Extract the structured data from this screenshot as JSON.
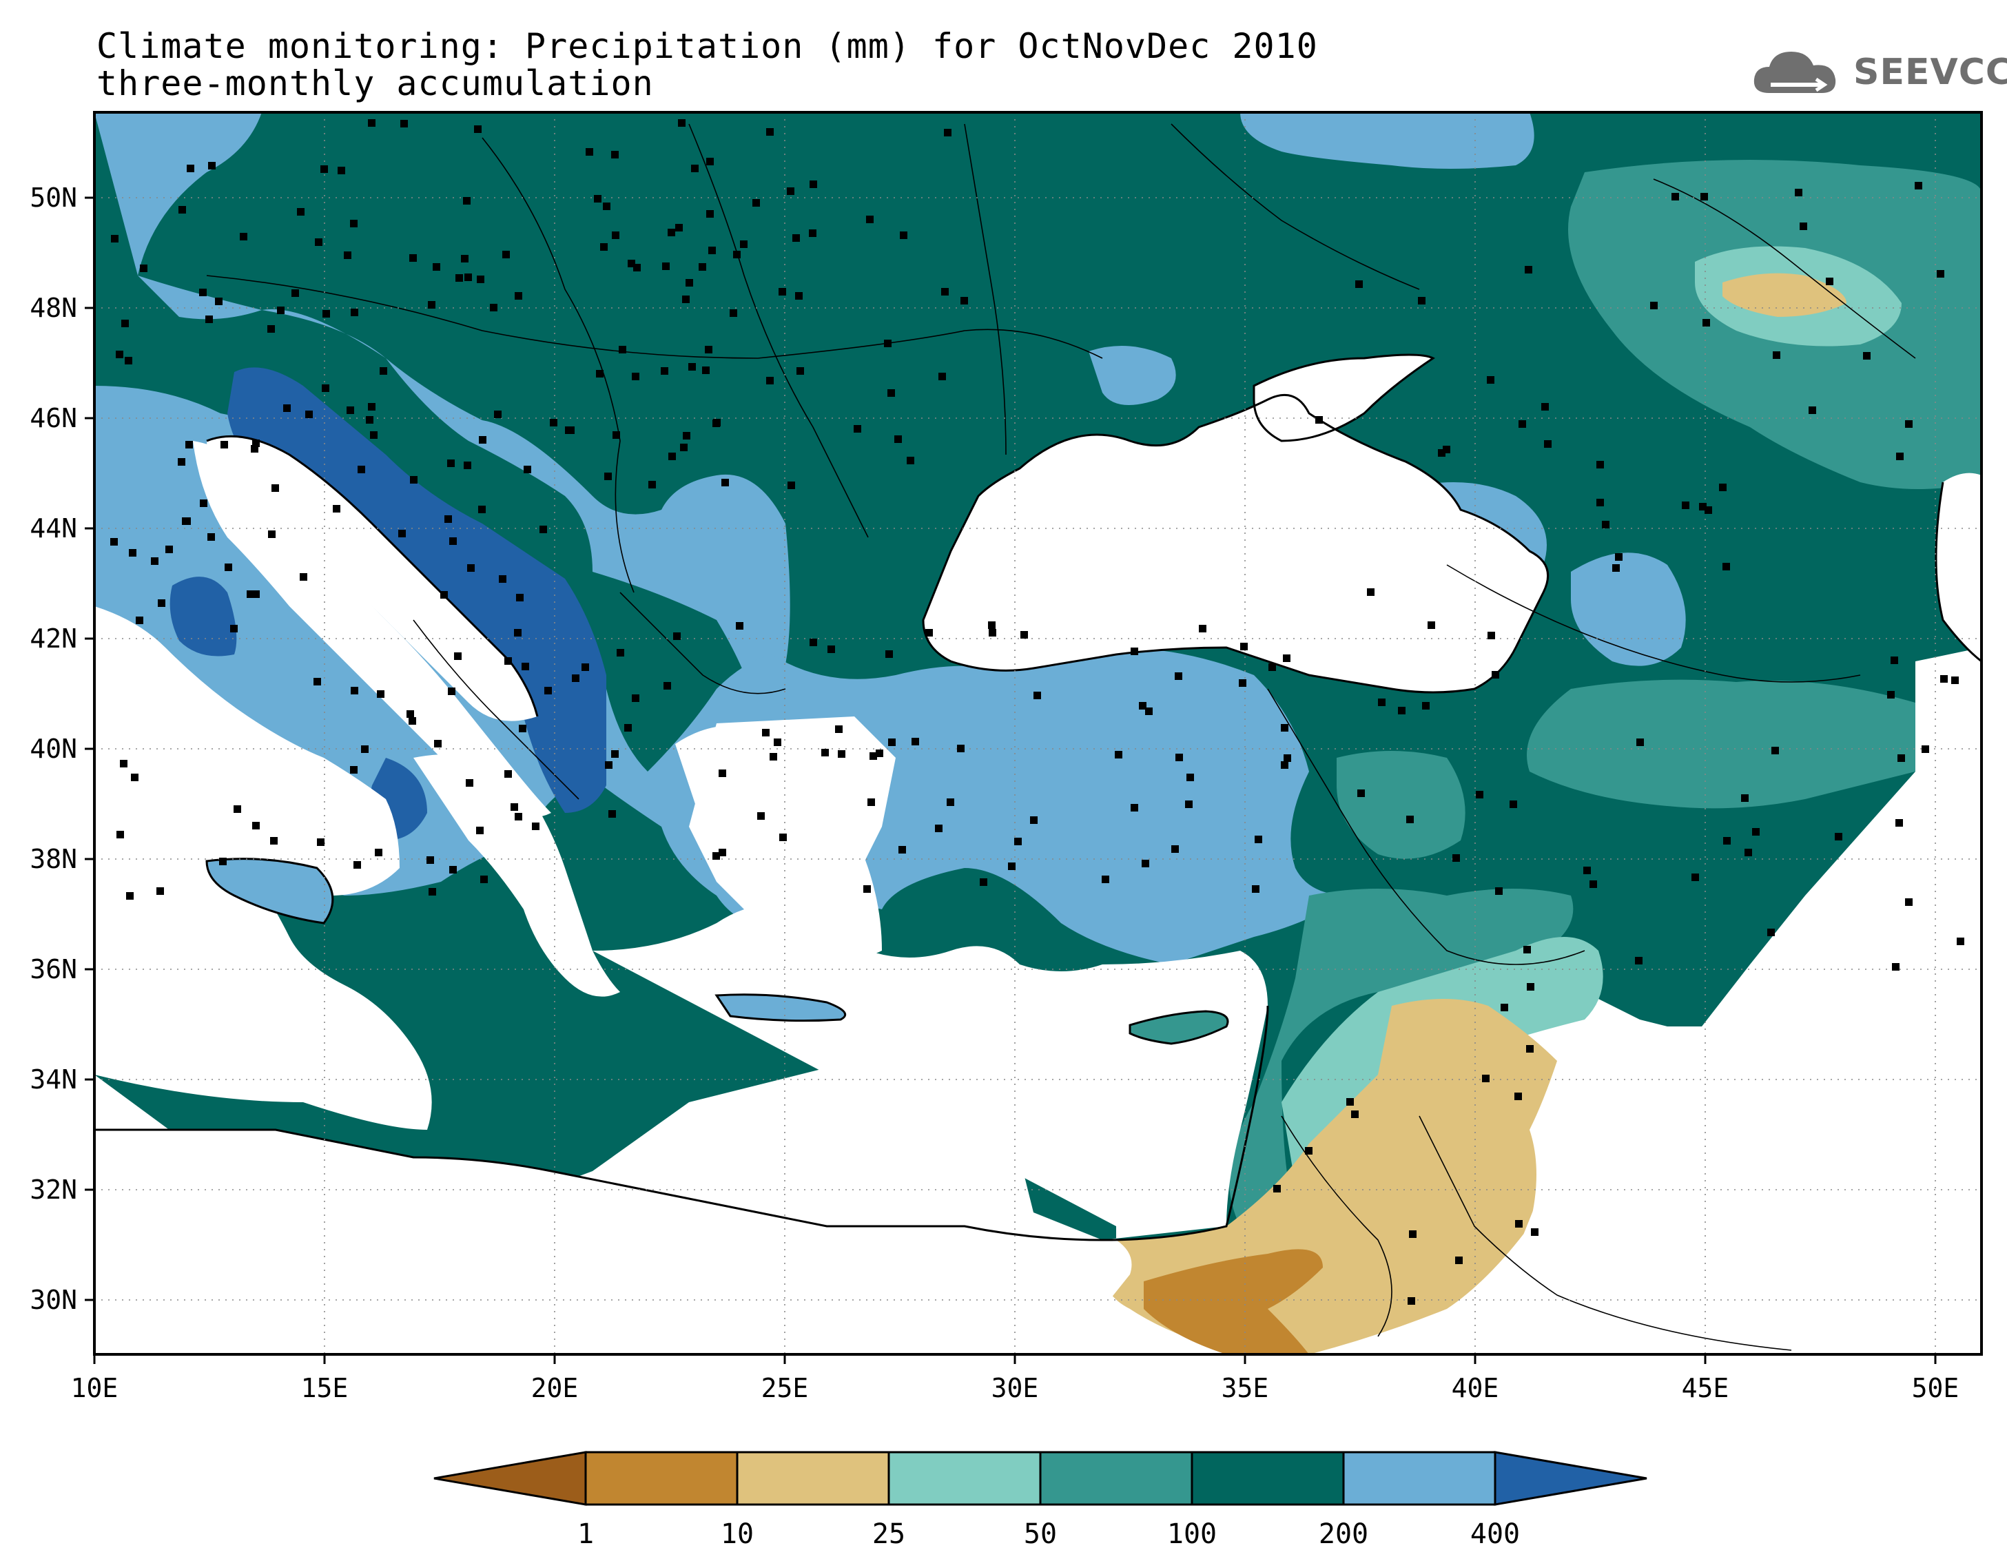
{
  "title": {
    "line1": "Climate monitoring: Precipitation (mm) for OctNovDec 2010",
    "line2": "three-monthly accumulation"
  },
  "logo": {
    "text": "SEEVCCC",
    "icon": "cloud-icon"
  },
  "map": {
    "lon_labels": [
      "10E",
      "15E",
      "20E",
      "25E",
      "30E",
      "35E",
      "40E",
      "45E",
      "50E"
    ],
    "lat_labels": [
      "30N",
      "32N",
      "34N",
      "36N",
      "38N",
      "40N",
      "42N",
      "44N",
      "46N",
      "48N",
      "50N"
    ]
  },
  "colorbar": {
    "labels": [
      "1",
      "10",
      "25",
      "50",
      "100",
      "200",
      "400"
    ],
    "colors": [
      "#9c5d1a",
      "#c18630",
      "#dfc27d",
      "#80cdc1",
      "#35978f",
      "#01665e",
      "#6baed6",
      "#2161a6"
    ]
  },
  "colors": {
    "lt1": "#9c5d1a",
    "c1_10": "#c18630",
    "c10_25": "#dfc27d",
    "c25_50": "#80cdc1",
    "c50_100": "#35978f",
    "c100_200": "#01665e",
    "c200_400": "#6baed6",
    "gt400": "#2161a6"
  }
}
